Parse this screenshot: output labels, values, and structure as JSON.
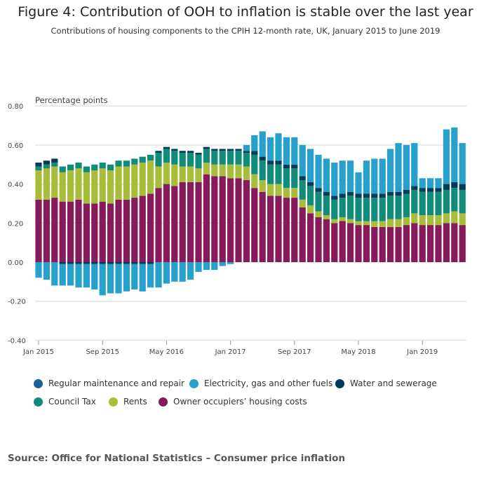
{
  "chart_data": {
    "type": "bar",
    "stacked": true,
    "title": "Figure 4: Contribution of OOH to inflation is stable over the last year",
    "subtitle": "Contributions of housing components to the CPIH 12-month rate, UK, January 2015 to June 2019",
    "ylabel": "Percentage points",
    "xlabel": "",
    "ylim": [
      -0.4,
      0.8
    ],
    "yticks": [
      "0.80",
      "0.60",
      "0.40",
      "0.20",
      "0.00",
      "-0.20",
      "-0.40"
    ],
    "ytick_values": [
      0.8,
      0.6,
      0.4,
      0.2,
      0,
      -0.2,
      -0.4
    ],
    "xtick_labels": [
      "Jan 2015",
      "Sep 2015",
      "May 2016",
      "Jan 2017",
      "Sep 2017",
      "May 2018",
      "Jan 2019"
    ],
    "xtick_indices": [
      0,
      8,
      16,
      24,
      32,
      40,
      48
    ],
    "grid": true,
    "legend_position": "bottom",
    "categories": [
      "Jan 2015",
      "Feb 2015",
      "Mar 2015",
      "Apr 2015",
      "May 2015",
      "Jun 2015",
      "Jul 2015",
      "Aug 2015",
      "Sep 2015",
      "Oct 2015",
      "Nov 2015",
      "Dec 2015",
      "Jan 2016",
      "Feb 2016",
      "Mar 2016",
      "Apr 2016",
      "May 2016",
      "Jun 2016",
      "Jul 2016",
      "Aug 2016",
      "Sep 2016",
      "Oct 2016",
      "Nov 2016",
      "Dec 2016",
      "Jan 2017",
      "Feb 2017",
      "Mar 2017",
      "Apr 2017",
      "May 2017",
      "Jun 2017",
      "Jul 2017",
      "Aug 2017",
      "Sep 2017",
      "Oct 2017",
      "Nov 2017",
      "Dec 2017",
      "Jan 2018",
      "Feb 2018",
      "Mar 2018",
      "Apr 2018",
      "May 2018",
      "Jun 2018",
      "Jul 2018",
      "Aug 2018",
      "Sep 2018",
      "Oct 2018",
      "Nov 2018",
      "Dec 2018",
      "Jan 2019",
      "Feb 2019",
      "Mar 2019",
      "Apr 2019",
      "May 2019",
      "Jun 2019"
    ],
    "series": [
      {
        "name": "Owner occupiers’ housing costs",
        "color": "#871A5B",
        "values": [
          0.32,
          0.32,
          0.33,
          0.31,
          0.31,
          0.32,
          0.3,
          0.3,
          0.31,
          0.3,
          0.32,
          0.32,
          0.33,
          0.34,
          0.35,
          0.38,
          0.4,
          0.39,
          0.41,
          0.41,
          0.41,
          0.45,
          0.44,
          0.44,
          0.43,
          0.43,
          0.42,
          0.38,
          0.36,
          0.34,
          0.34,
          0.33,
          0.33,
          0.28,
          0.25,
          0.23,
          0.22,
          0.2,
          0.21,
          0.2,
          0.19,
          0.19,
          0.18,
          0.18,
          0.18,
          0.18,
          0.19,
          0.2,
          0.19,
          0.19,
          0.19,
          0.2,
          0.2,
          0.19
        ]
      },
      {
        "name": "Rents",
        "color": "#A8BD3A",
        "values": [
          0.15,
          0.16,
          0.16,
          0.15,
          0.16,
          0.16,
          0.16,
          0.17,
          0.17,
          0.17,
          0.17,
          0.17,
          0.17,
          0.17,
          0.17,
          0.11,
          0.11,
          0.11,
          0.08,
          0.08,
          0.07,
          0.06,
          0.06,
          0.06,
          0.07,
          0.07,
          0.07,
          0.07,
          0.06,
          0.06,
          0.06,
          0.05,
          0.05,
          0.04,
          0.04,
          0.03,
          0.02,
          0.02,
          0.02,
          0.02,
          0.02,
          0.02,
          0.03,
          0.03,
          0.04,
          0.04,
          0.04,
          0.05,
          0.05,
          0.05,
          0.05,
          0.05,
          0.06,
          0.06
        ]
      },
      {
        "name": "Council Tax",
        "color": "#118C7B",
        "values": [
          0.02,
          0.02,
          0.02,
          0.03,
          0.03,
          0.03,
          0.03,
          0.03,
          0.03,
          0.03,
          0.03,
          0.03,
          0.03,
          0.03,
          0.03,
          0.07,
          0.07,
          0.07,
          0.07,
          0.07,
          0.07,
          0.07,
          0.07,
          0.07,
          0.07,
          0.07,
          0.07,
          0.1,
          0.1,
          0.1,
          0.1,
          0.1,
          0.1,
          0.1,
          0.1,
          0.1,
          0.1,
          0.1,
          0.1,
          0.12,
          0.12,
          0.12,
          0.12,
          0.12,
          0.12,
          0.12,
          0.12,
          0.12,
          0.12,
          0.12,
          0.12,
          0.12,
          0.12,
          0.12
        ]
      },
      {
        "name": "Water and sewerage",
        "color": "#003C57",
        "values": [
          0.02,
          0.02,
          0.02,
          -0.01,
          -0.01,
          -0.01,
          -0.01,
          -0.01,
          -0.01,
          -0.01,
          -0.01,
          -0.01,
          -0.01,
          -0.01,
          -0.01,
          0.01,
          0.01,
          0.01,
          0.01,
          0.01,
          0.01,
          0.01,
          0.01,
          0.01,
          0.01,
          0.01,
          0.01,
          0.02,
          0.02,
          0.02,
          0.02,
          0.02,
          0.02,
          0.02,
          0.02,
          0.02,
          0.02,
          0.02,
          0.02,
          0.02,
          0.02,
          0.02,
          0.02,
          0.02,
          0.02,
          0.02,
          0.02,
          0.02,
          0.02,
          0.02,
          0.02,
          0.03,
          0.03,
          0.03
        ]
      },
      {
        "name": "Electricity, gas and other fuels",
        "color": "#27A0CC",
        "values": [
          -0.08,
          -0.09,
          -0.12,
          -0.11,
          -0.11,
          -0.12,
          -0.12,
          -0.13,
          -0.16,
          -0.15,
          -0.15,
          -0.14,
          -0.13,
          -0.14,
          -0.12,
          -0.13,
          -0.11,
          -0.1,
          -0.1,
          -0.09,
          -0.05,
          -0.04,
          -0.04,
          -0.02,
          -0.01,
          0.0,
          0.03,
          0.08,
          0.13,
          0.12,
          0.14,
          0.14,
          0.14,
          0.16,
          0.17,
          0.17,
          0.17,
          0.17,
          0.17,
          0.16,
          0.11,
          0.17,
          0.18,
          0.18,
          0.22,
          0.25,
          0.23,
          0.22,
          0.05,
          0.05,
          0.05,
          0.28,
          0.28,
          0.21
        ]
      },
      {
        "name": "Regular maintenance and repair",
        "color": "#206095",
        "values": [
          0,
          0,
          0,
          0,
          0,
          0,
          0,
          0,
          0,
          0,
          0,
          0,
          0,
          0,
          0,
          0,
          0,
          0,
          0,
          0,
          0,
          0,
          0,
          0,
          0,
          0,
          0,
          0,
          0,
          0,
          0,
          0,
          0,
          0,
          0,
          0,
          0,
          0,
          0,
          0,
          0,
          0,
          0,
          0,
          0,
          0,
          0,
          0,
          0,
          0,
          0,
          0,
          0,
          0
        ]
      }
    ],
    "legend_order": [
      5,
      4,
      3,
      2,
      1,
      0
    ]
  },
  "source": "Source: Office for National Statistics – Consumer price inflation"
}
